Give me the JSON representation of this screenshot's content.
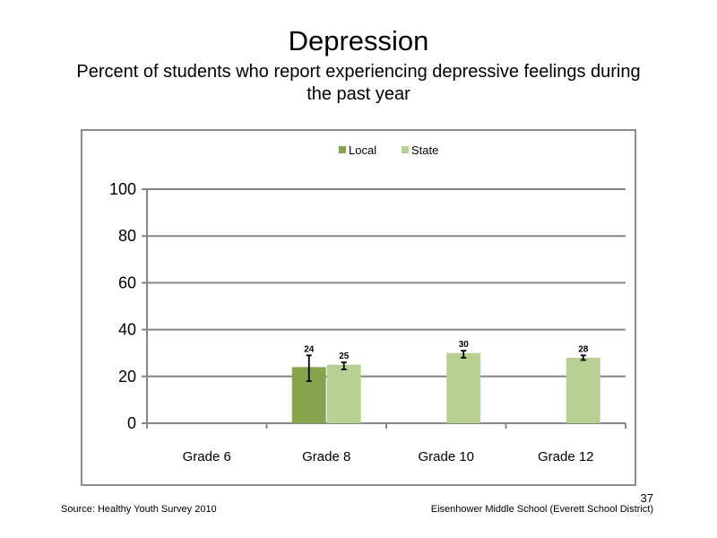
{
  "slide": {
    "title": "Depression",
    "subtitle": "Percent of students who report experiencing  depressive  feelings during  the past year",
    "source": "Source: Healthy  Youth Survey 2010",
    "school": "Eisenhower Middle  School  (Everett School District)",
    "page_number": "37"
  },
  "colors": {
    "local": "#86a34e",
    "state": "#b8cf94",
    "grid": "#868686",
    "frame": "#8c8c8c"
  },
  "chart_data": {
    "type": "bar",
    "title": "",
    "xlabel": "",
    "ylabel": "",
    "categories": [
      "Grade 6",
      "Grade 8",
      "Grade 10",
      "Grade 12"
    ],
    "ylim": [
      0,
      100
    ],
    "yticks": [
      0,
      20,
      40,
      60,
      80,
      100
    ],
    "legend_position": "top",
    "grid": true,
    "series": [
      {
        "name": "Local",
        "values": [
          null,
          24,
          null,
          null
        ],
        "labels": [
          "",
          "24",
          "",
          ""
        ],
        "error_low": [
          null,
          18,
          null,
          null
        ],
        "error_high": [
          null,
          29,
          null,
          null
        ]
      },
      {
        "name": "State",
        "values": [
          null,
          25,
          30,
          28
        ],
        "labels": [
          "",
          "25",
          "30",
          "28"
        ],
        "error_low": [
          null,
          23,
          28,
          27
        ],
        "error_high": [
          null,
          26,
          31,
          29
        ]
      }
    ]
  }
}
